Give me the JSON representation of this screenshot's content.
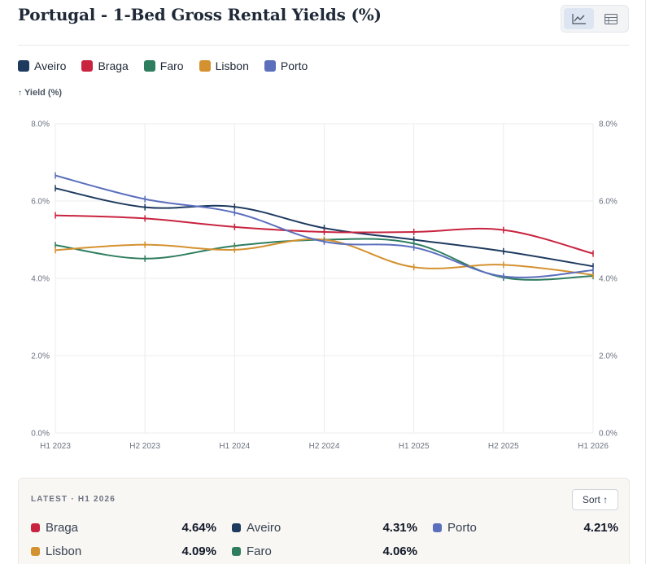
{
  "header": {
    "title": "Portugal - 1-Bed Gross Rental Yields (%)"
  },
  "view_toggle": [
    {
      "icon": "line-chart-icon",
      "active": true
    },
    {
      "icon": "table-icon",
      "active": false
    }
  ],
  "legend": [
    {
      "label": "Aveiro",
      "color": "#1e3a5f"
    },
    {
      "label": "Braga",
      "color": "#c8243f"
    },
    {
      "label": "Faro",
      "color": "#2e7d5f"
    },
    {
      "label": "Lisbon",
      "color": "#d4912f"
    },
    {
      "label": "Porto",
      "color": "#5b6fbd"
    }
  ],
  "yaxis_title": "Yield (%)",
  "chart_data": {
    "type": "line",
    "categories": [
      "H1 2023",
      "H2 2023",
      "H1 2024",
      "H2 2024",
      "H1 2025",
      "H2 2025",
      "H1 2026"
    ],
    "ylim": [
      0,
      8
    ],
    "yticks": [
      "0.0%",
      "2.0%",
      "4.0%",
      "6.0%",
      "8.0%"
    ],
    "ylabel": "Yield (%)",
    "grid": true,
    "legend_position": "top-left",
    "series": [
      {
        "name": "Aveiro",
        "color": "#1e3a5f",
        "values": [
          6.33,
          5.84,
          5.85,
          5.3,
          5.0,
          4.7,
          4.31
        ]
      },
      {
        "name": "Braga",
        "color": "#c8243f",
        "values": [
          5.63,
          5.55,
          5.33,
          5.2,
          5.2,
          5.25,
          4.64
        ]
      },
      {
        "name": "Faro",
        "color": "#2e7d5f",
        "values": [
          4.86,
          4.51,
          4.84,
          5.0,
          4.9,
          4.02,
          4.06
        ]
      },
      {
        "name": "Lisbon",
        "color": "#d4912f",
        "values": [
          4.73,
          4.87,
          4.74,
          5.0,
          4.29,
          4.35,
          4.09
        ]
      },
      {
        "name": "Porto",
        "color": "#5b6fbd",
        "values": [
          6.66,
          6.05,
          5.7,
          4.95,
          4.8,
          4.05,
          4.21
        ]
      }
    ]
  },
  "latest": {
    "label": "LATEST · H1 2026",
    "sort_label": "Sort ↑",
    "rows": [
      [
        {
          "name": "Braga",
          "value": "4.64%",
          "color": "#c8243f"
        },
        {
          "name": "Aveiro",
          "value": "4.31%",
          "color": "#1e3a5f"
        },
        {
          "name": "Porto",
          "value": "4.21%",
          "color": "#5b6fbd"
        }
      ],
      [
        {
          "name": "Lisbon",
          "value": "4.09%",
          "color": "#d4912f"
        },
        {
          "name": "Faro",
          "value": "4.06%",
          "color": "#2e7d5f"
        }
      ]
    ]
  }
}
